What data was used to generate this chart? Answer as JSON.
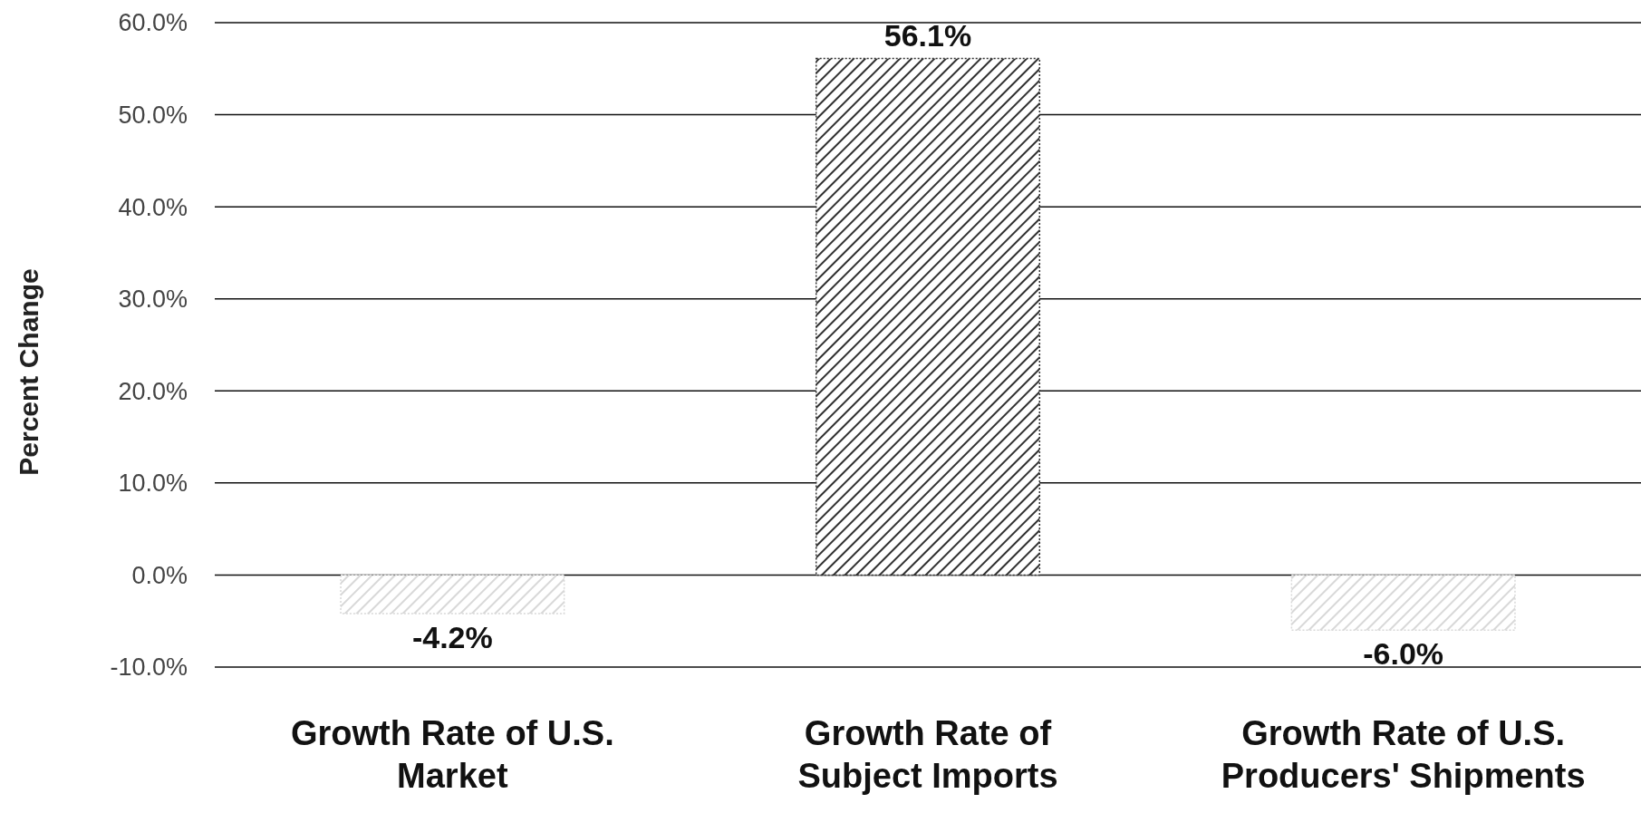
{
  "chart_data": {
    "type": "bar",
    "ylabel": "Percent Change",
    "categories": [
      "Growth Rate of U.S. Market",
      "Growth Rate of Subject Imports",
      "Growth Rate of U.S. Producers' Shipments"
    ],
    "values": [
      -4.2,
      56.1,
      -6.0
    ],
    "colors": [
      "#d8d8d8",
      "#303030",
      "#d8d8d8"
    ],
    "value_labels": [
      "-4.2%",
      "56.1%",
      "-6.0%"
    ],
    "ylim": [
      -10,
      60
    ],
    "yticks": [
      {
        "value": -10,
        "label": "-10.0%"
      },
      {
        "value": 0,
        "label": "0.0%"
      },
      {
        "value": 10,
        "label": "10.0%"
      },
      {
        "value": 20,
        "label": "20.0%"
      },
      {
        "value": 30,
        "label": "30.0%"
      },
      {
        "value": 40,
        "label": "40.0%"
      },
      {
        "value": 50,
        "label": "50.0%"
      },
      {
        "value": 60,
        "label": "60.0%"
      }
    ],
    "grid": "y"
  }
}
